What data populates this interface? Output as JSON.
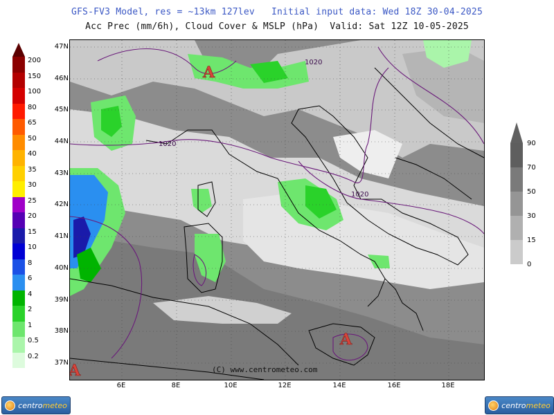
{
  "header": {
    "line1": "GFS-FV3 Model, res = ~13km 127lev   Initial input data: Wed 18Z 30-04-2025",
    "line2": "Acc Prec (mm/6h), Cloud Cover & MSLP (hPa)  Valid: Sat 12Z 10-05-2025"
  },
  "map": {
    "lat_labels": [
      "47N",
      "46N",
      "45N",
      "44N",
      "43N",
      "42N",
      "41N",
      "40N",
      "39N",
      "38N",
      "37N"
    ],
    "lon_labels": [
      "6E",
      "8E",
      "10E",
      "12E",
      "14E",
      "16E",
      "18E"
    ],
    "isobars": [
      "1020",
      "1020",
      "1020"
    ],
    "pressure_centers": [
      "A",
      "A",
      "A"
    ],
    "copyright": "(C) www.centrometeo.com"
  },
  "precip_colorbar": {
    "labels": [
      "200",
      "150",
      "100",
      "80",
      "65",
      "50",
      "40",
      "35",
      "30",
      "25",
      "20",
      "15",
      "10",
      "8",
      "6",
      "4",
      "2",
      "1",
      "0.5",
      "0.2"
    ],
    "colors": [
      "#8b0000",
      "#b30000",
      "#d40000",
      "#ff1a00",
      "#ff5a00",
      "#ff8c00",
      "#ffb300",
      "#ffd000",
      "#ffee00",
      "#a000c8",
      "#5500b4",
      "#1a1aaa",
      "#0000d4",
      "#1a50e6",
      "#2a8ff0",
      "#00b400",
      "#2ad22a",
      "#6ee66e",
      "#aaf5aa",
      "#ddfbdd"
    ]
  },
  "cloud_colorbar": {
    "labels": [
      "90",
      "70",
      "50",
      "30",
      "15",
      "0"
    ],
    "colors": [
      "#5e5e5e",
      "#7a7a7a",
      "#959595",
      "#b0b0b0",
      "#cbcbcb",
      "#e6e6e6"
    ]
  },
  "logos": {
    "left": {
      "word1": "centro",
      "word2": "meteo"
    },
    "right": {
      "word1": "centro",
      "word2": "meteo"
    }
  }
}
